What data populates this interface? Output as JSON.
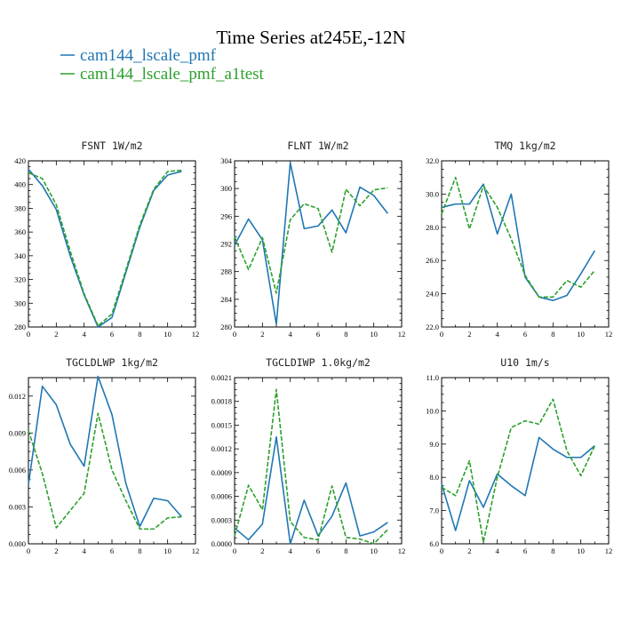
{
  "title": "Time Series at245E,-12N",
  "legend": [
    {
      "label": "cam144_lscale_pmf",
      "color": "#1f77b4",
      "dash": "solid"
    },
    {
      "label": "cam144_lscale_pmf_a1test",
      "color": "#2ca02c",
      "dash": "dashed"
    }
  ],
  "chart_data": [
    {
      "type": "line",
      "title": "FSNT  1W/m2",
      "xlim": [
        0,
        12
      ],
      "xticks": [
        0,
        2,
        4,
        6,
        8,
        10,
        12
      ],
      "ylim": [
        280,
        420
      ],
      "yticks": [
        280,
        300,
        320,
        340,
        360,
        380,
        400,
        420
      ],
      "ytick_labels": [
        "280",
        "300",
        "320",
        "340",
        "360",
        "380",
        "400",
        "420"
      ],
      "x": [
        0,
        1,
        2,
        3,
        4,
        5,
        6,
        7,
        8,
        9,
        10,
        11
      ],
      "series": [
        {
          "name": "cam144_lscale_pmf",
          "values": [
            413,
            399,
            379,
            340,
            307,
            280,
            288,
            326,
            364,
            395,
            408,
            411
          ]
        },
        {
          "name": "cam144_lscale_pmf_a1test",
          "values": [
            410,
            405,
            383,
            344,
            308,
            281,
            291,
            328,
            366,
            396,
            411,
            412
          ]
        }
      ]
    },
    {
      "type": "line",
      "title": "FLNT  1W/m2",
      "xlim": [
        0,
        12
      ],
      "xticks": [
        0,
        2,
        4,
        6,
        8,
        10,
        12
      ],
      "ylim": [
        280,
        304
      ],
      "yticks": [
        280,
        284,
        288,
        292,
        296,
        300,
        304
      ],
      "ytick_labels": [
        "280",
        "284",
        "288",
        "292",
        "296",
        "300",
        "304"
      ],
      "x": [
        0,
        1,
        2,
        3,
        4,
        5,
        6,
        7,
        8,
        9,
        10,
        11
      ],
      "series": [
        {
          "name": "cam144_lscale_pmf",
          "values": [
            291.8,
            295.6,
            292.6,
            280.4,
            303.7,
            294.2,
            294.6,
            296.9,
            293.6,
            300.2,
            299.0,
            296.4
          ]
        },
        {
          "name": "cam144_lscale_pmf_a1test",
          "values": [
            293.0,
            288.3,
            292.9,
            284.9,
            295.5,
            297.8,
            297.1,
            290.8,
            299.9,
            297.5,
            299.8,
            300.1
          ]
        }
      ]
    },
    {
      "type": "line",
      "title": "TMQ  1kg/m2",
      "xlim": [
        0,
        12
      ],
      "xticks": [
        0,
        2,
        4,
        6,
        8,
        10,
        12
      ],
      "ylim": [
        22,
        32
      ],
      "yticks": [
        22,
        24,
        26,
        28,
        30,
        32
      ],
      "ytick_labels": [
        "22.0",
        "24.0",
        "26.0",
        "28.0",
        "30.0",
        "32.0"
      ],
      "x": [
        0,
        1,
        2,
        3,
        4,
        5,
        6,
        7,
        8,
        9,
        10,
        11
      ],
      "series": [
        {
          "name": "cam144_lscale_pmf",
          "values": [
            29.2,
            29.4,
            29.4,
            30.6,
            27.6,
            30.0,
            25.0,
            23.8,
            23.6,
            23.9,
            25.2,
            26.6
          ]
        },
        {
          "name": "cam144_lscale_pmf_a1test",
          "values": [
            28.8,
            31.0,
            27.9,
            30.5,
            29.2,
            27.3,
            25.1,
            23.8,
            23.8,
            24.8,
            24.4,
            25.4
          ]
        }
      ]
    },
    {
      "type": "line",
      "title": "TGCLDLWP  1kg/m2",
      "xlim": [
        0,
        12
      ],
      "xticks": [
        0,
        2,
        4,
        6,
        8,
        10,
        12
      ],
      "ylim": [
        0,
        0.0135
      ],
      "yticks": [
        0,
        0.003,
        0.006,
        0.009,
        0.012
      ],
      "ytick_labels": [
        "0.000",
        "0.003",
        "0.006",
        "0.009",
        "0.012"
      ],
      "x": [
        0,
        1,
        2,
        3,
        4,
        5,
        6,
        7,
        8,
        9,
        10,
        11
      ],
      "series": [
        {
          "name": "cam144_lscale_pmf",
          "values": [
            0.0048,
            0.0128,
            0.0113,
            0.0081,
            0.0063,
            0.0136,
            0.0105,
            0.0049,
            0.0014,
            0.0037,
            0.0035,
            0.0022
          ]
        },
        {
          "name": "cam144_lscale_pmf_a1test",
          "values": [
            0.0092,
            0.0057,
            0.0013,
            0.0027,
            0.0041,
            0.0106,
            0.006,
            0.0035,
            0.0012,
            0.0012,
            0.0021,
            0.0022
          ]
        }
      ]
    },
    {
      "type": "line",
      "title": "TGCLDIWP  1.0kg/m2",
      "xlim": [
        0,
        12
      ],
      "xticks": [
        0,
        2,
        4,
        6,
        8,
        10,
        12
      ],
      "ylim": [
        0,
        0.0021
      ],
      "yticks": [
        0,
        0.0003,
        0.0006,
        0.0009,
        0.0012,
        0.0015,
        0.0018,
        0.0021
      ],
      "ytick_labels": [
        "0.0000",
        "0.0003",
        "0.0006",
        "0.0009",
        "0.0012",
        "0.0015",
        "0.0018",
        "0.0021"
      ],
      "x": [
        0,
        1,
        2,
        3,
        4,
        5,
        6,
        7,
        8,
        9,
        10,
        11
      ],
      "series": [
        {
          "name": "cam144_lscale_pmf",
          "values": [
            0.0002,
            5e-05,
            0.00025,
            0.00135,
            0.0,
            0.00055,
            0.0001,
            0.00035,
            0.00077,
            0.0001,
            0.00015,
            0.00027
          ]
        },
        {
          "name": "cam144_lscale_pmf_a1test",
          "values": [
            0.0001,
            0.00074,
            0.00043,
            0.00195,
            0.00028,
            8e-05,
            5e-05,
            0.00073,
            8e-05,
            6e-05,
            0.0,
            0.00018
          ]
        }
      ]
    },
    {
      "type": "line",
      "title": "U10  1m/s",
      "xlim": [
        0,
        12
      ],
      "xticks": [
        0,
        2,
        4,
        6,
        8,
        10,
        12
      ],
      "ylim": [
        6,
        11
      ],
      "yticks": [
        6,
        7,
        8,
        9,
        10,
        11
      ],
      "ytick_labels": [
        "6.0",
        "7.0",
        "8.0",
        "9.0",
        "10.0",
        "11.0"
      ],
      "x": [
        0,
        1,
        2,
        3,
        4,
        5,
        6,
        7,
        8,
        9,
        10,
        11
      ],
      "series": [
        {
          "name": "cam144_lscale_pmf",
          "values": [
            7.8,
            6.4,
            7.9,
            7.1,
            8.1,
            7.75,
            7.45,
            9.2,
            8.85,
            8.6,
            8.6,
            8.95
          ]
        },
        {
          "name": "cam144_lscale_pmf_a1test",
          "values": [
            7.7,
            7.45,
            8.5,
            6.05,
            8.0,
            9.5,
            9.7,
            9.6,
            10.35,
            8.8,
            8.05,
            8.95
          ]
        }
      ]
    }
  ]
}
